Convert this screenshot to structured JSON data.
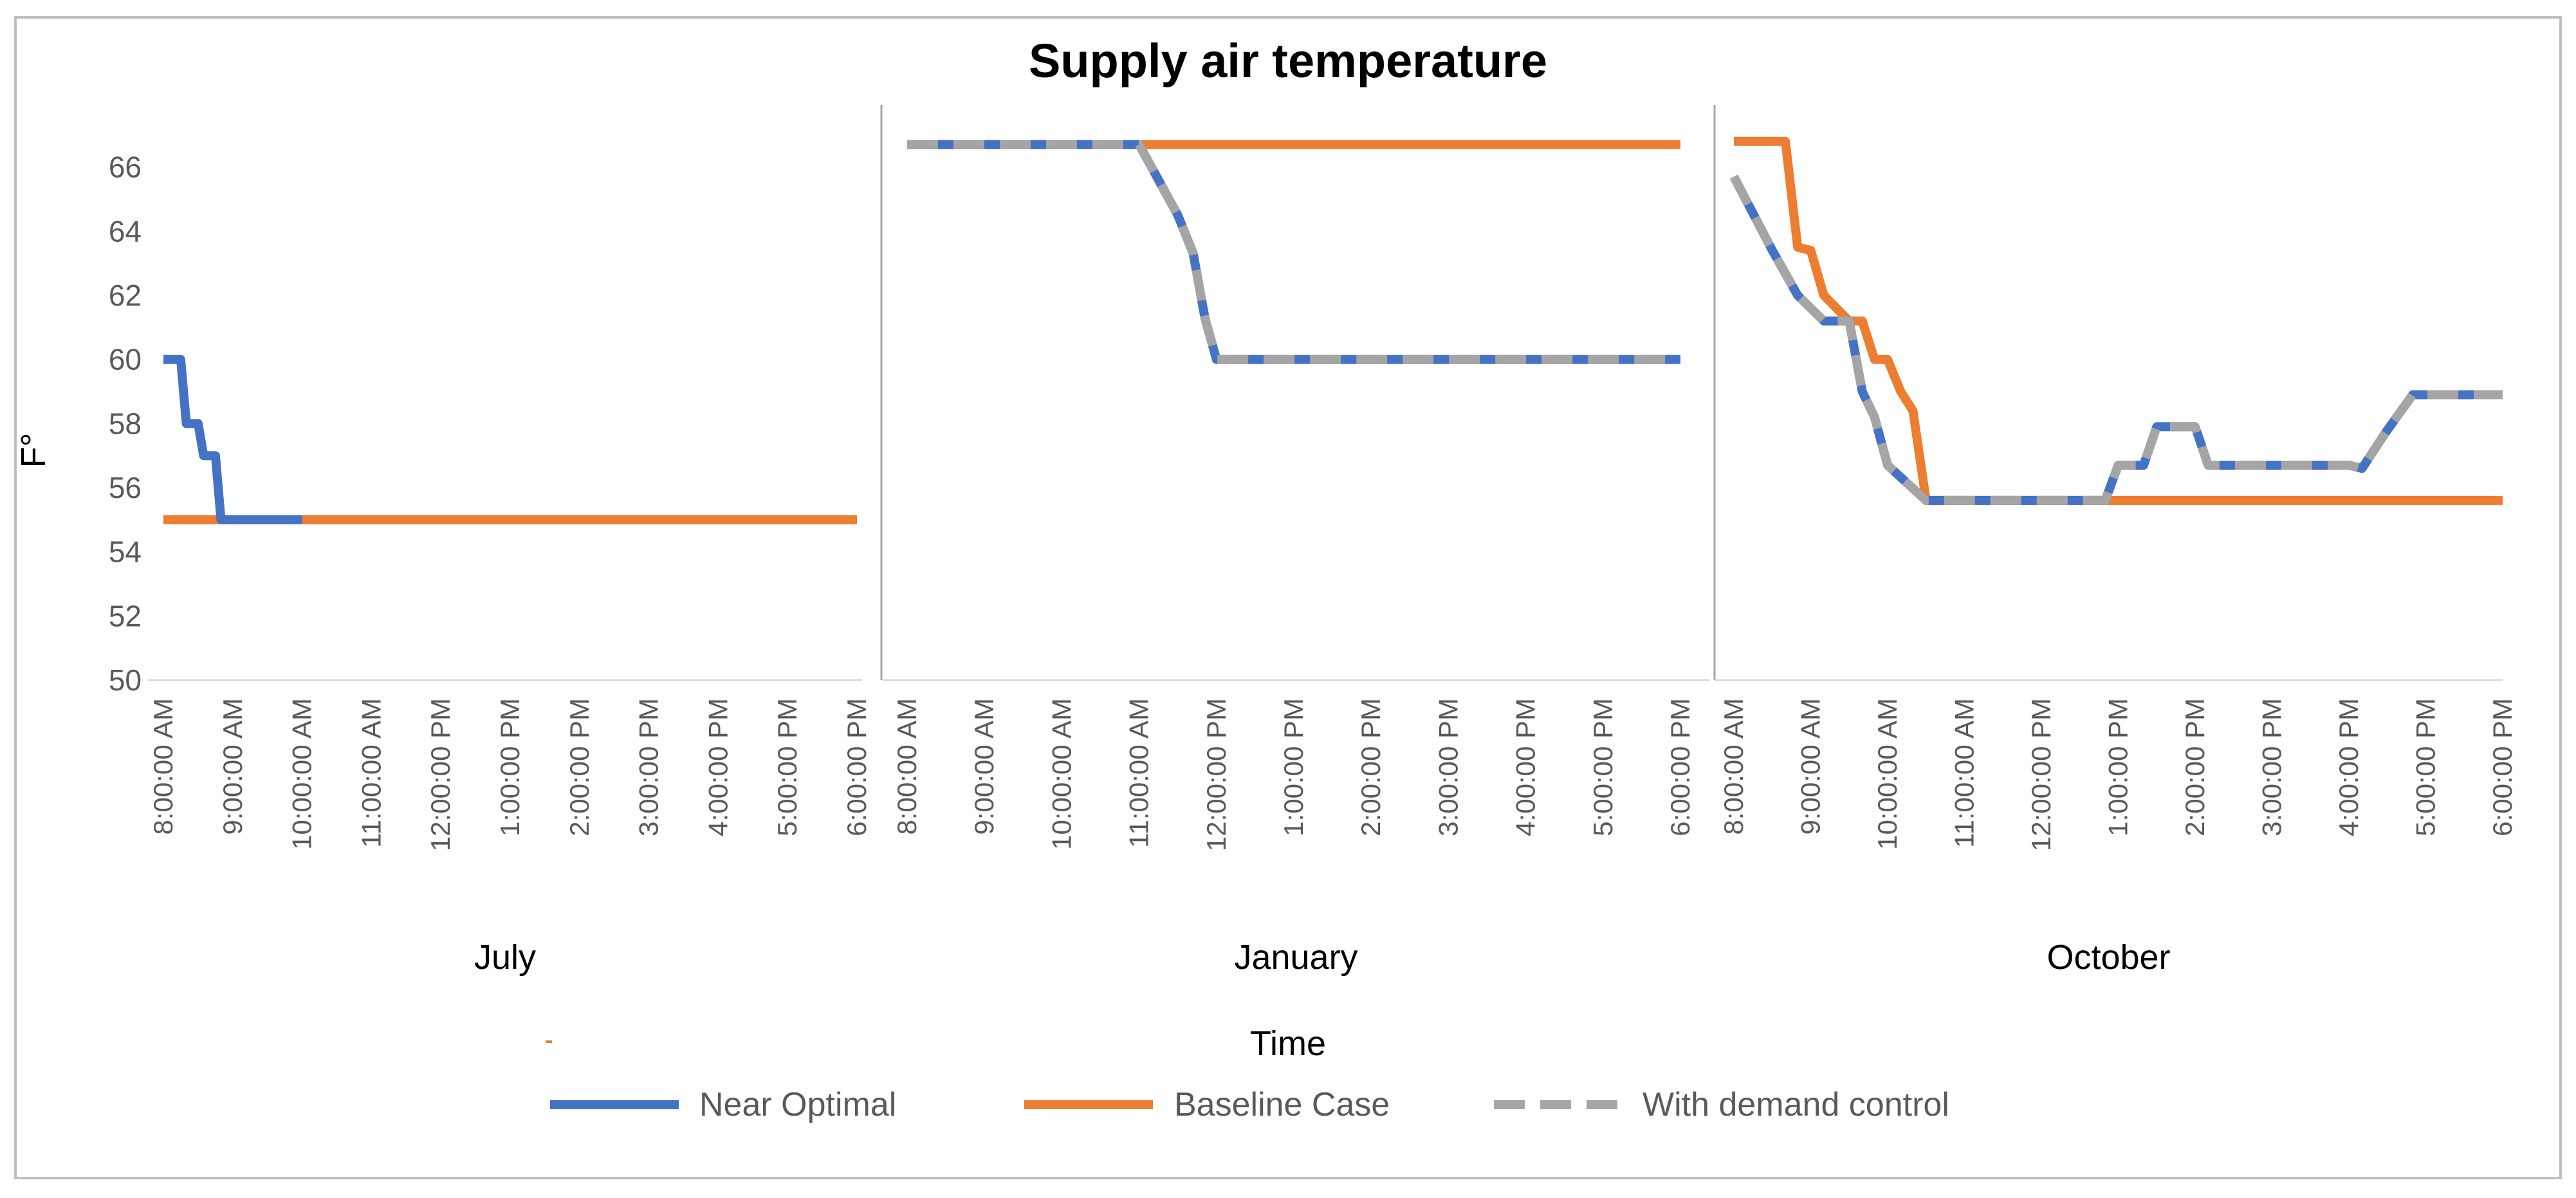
{
  "chart_data": {
    "type": "line",
    "title": "Supply air temperature",
    "xlabel": "Time",
    "ylabel": "F°",
    "ylim": [
      50,
      68
    ],
    "yticks": [
      50,
      52,
      54,
      56,
      58,
      60,
      62,
      64,
      66
    ],
    "grid": false,
    "legend_position": "bottom",
    "series_names": [
      "Near Optimal",
      "Baseline Case",
      "With demand control"
    ],
    "series_colors": [
      "#4472C4",
      "#ED7D31",
      "#A5A5A5"
    ],
    "panels": [
      {
        "name": "July",
        "categories": [
          "8:00:00 AM",
          "9:00:00 AM",
          "10:00:00 AM",
          "11:00:00 AM",
          "12:00:00 PM",
          "1:00:00 PM",
          "2:00:00 PM",
          "3:00:00 PM",
          "4:00:00 PM",
          "5:00:00 PM",
          "6:00:00 PM"
        ],
        "series": [
          {
            "name": "Near Optimal",
            "x": [
              8.0,
              8.25,
              8.33,
              8.5,
              8.58,
              8.75,
              8.83,
              9.0,
              10.0
            ],
            "values": [
              60,
              60,
              58,
              58,
              57,
              57,
              55,
              55,
              55
            ]
          },
          {
            "name": "Baseline Case",
            "x": [
              8.0,
              18.0
            ],
            "values": [
              55,
              55
            ]
          }
        ]
      },
      {
        "name": "January",
        "categories": [
          "8:00:00 AM",
          "9:00:00 AM",
          "10:00:00 AM",
          "11:00:00 AM",
          "12:00:00 PM",
          "1:00:00 PM",
          "2:00:00 PM",
          "3:00:00 PM",
          "4:00:00 PM",
          "5:00:00 PM",
          "6:00:00 PM"
        ],
        "series": [
          {
            "name": "Near Optimal",
            "x": [
              8.0,
              11.0,
              11.5,
              11.7,
              11.85,
              12.0,
              18.0
            ],
            "values": [
              66.7,
              66.7,
              64.5,
              63.3,
              61.3,
              60,
              60
            ]
          },
          {
            "name": "Baseline Case",
            "x": [
              8.0,
              18.0
            ],
            "values": [
              66.7,
              66.7
            ]
          },
          {
            "name": "With demand control",
            "x": [
              8.0,
              11.0,
              11.5,
              11.7,
              11.85,
              12.0,
              18.0
            ],
            "values": [
              66.7,
              66.7,
              64.5,
              63.3,
              61.3,
              60,
              60
            ]
          }
        ]
      },
      {
        "name": "October",
        "categories": [
          "8:00:00 AM",
          "9:00:00 AM",
          "10:00:00 AM",
          "11:00:00 AM",
          "12:00:00 PM",
          "1:00:00 PM",
          "2:00:00 PM",
          "3:00:00 PM",
          "4:00:00 PM",
          "5:00:00 PM",
          "6:00:00 PM"
        ],
        "series": [
          {
            "name": "Near Optimal",
            "x": [
              8.0,
              8.5,
              8.83,
              9.17,
              9.33,
              9.5,
              9.67,
              9.83,
              10.0,
              10.5,
              12.5,
              12.83,
              13.0,
              13.33,
              13.5,
              13.83,
              14.0,
              14.17,
              15.0,
              16.0,
              16.17,
              16.5,
              16.83,
              17.0,
              18.0
            ],
            "values": [
              65.7,
              63.4,
              62.0,
              61.2,
              61.2,
              61.2,
              59.0,
              58.2,
              56.7,
              55.6,
              55.6,
              55.6,
              56.7,
              56.7,
              57.9,
              57.9,
              57.9,
              56.7,
              56.7,
              56.7,
              56.6,
              57.8,
              58.9,
              58.9,
              58.9
            ]
          },
          {
            "name": "Baseline Case",
            "x": [
              8.0,
              8.67,
              8.83,
              9.0,
              9.17,
              9.5,
              9.67,
              9.83,
              10.0,
              10.17,
              10.33,
              10.5,
              10.83,
              11.0,
              18.0
            ],
            "values": [
              66.8,
              66.8,
              63.5,
              63.4,
              62.0,
              61.2,
              61.2,
              60.0,
              60.0,
              59.0,
              58.4,
              55.6,
              55.6,
              55.6,
              55.6
            ]
          },
          {
            "name": "With demand control",
            "x": [
              8.0,
              8.5,
              8.83,
              9.17,
              9.33,
              9.5,
              9.67,
              9.83,
              10.0,
              10.5,
              12.5,
              12.83,
              13.0,
              13.33,
              13.5,
              13.83,
              14.0,
              14.17,
              15.0,
              16.0,
              16.17,
              16.5,
              16.83,
              17.0,
              18.0
            ],
            "values": [
              65.7,
              63.4,
              62.0,
              61.2,
              61.2,
              61.2,
              59.0,
              58.2,
              56.7,
              55.6,
              55.6,
              55.6,
              56.7,
              56.7,
              57.9,
              57.9,
              57.9,
              56.7,
              56.7,
              56.7,
              56.6,
              57.8,
              58.9,
              58.9,
              58.9
            ]
          }
        ]
      }
    ]
  }
}
